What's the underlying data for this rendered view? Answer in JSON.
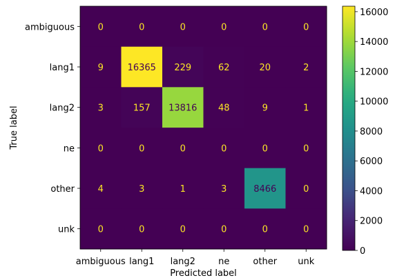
{
  "chart_data": {
    "type": "heatmap",
    "title": "",
    "xlabel": "Predicted label",
    "ylabel": "True label",
    "x_categories": [
      "ambiguous",
      "lang1",
      "lang2",
      "ne",
      "other",
      "unk"
    ],
    "y_categories": [
      "ambiguous",
      "lang1",
      "lang2",
      "ne",
      "other",
      "unk"
    ],
    "values": [
      [
        0,
        0,
        0,
        0,
        0,
        0
      ],
      [
        9,
        16365,
        229,
        62,
        20,
        2
      ],
      [
        3,
        157,
        13816,
        48,
        9,
        1
      ],
      [
        0,
        0,
        0,
        0,
        0,
        0
      ],
      [
        4,
        3,
        1,
        3,
        8466,
        0
      ],
      [
        0,
        0,
        0,
        0,
        0,
        0
      ]
    ],
    "colormap": "viridis",
    "vmin": 0,
    "vmax": 16365,
    "colorbar_ticks": [
      0,
      2000,
      4000,
      6000,
      8000,
      10000,
      12000,
      14000,
      16000
    ],
    "text_color_low": "#fde725",
    "text_color_high": "#440154",
    "grid": false
  }
}
